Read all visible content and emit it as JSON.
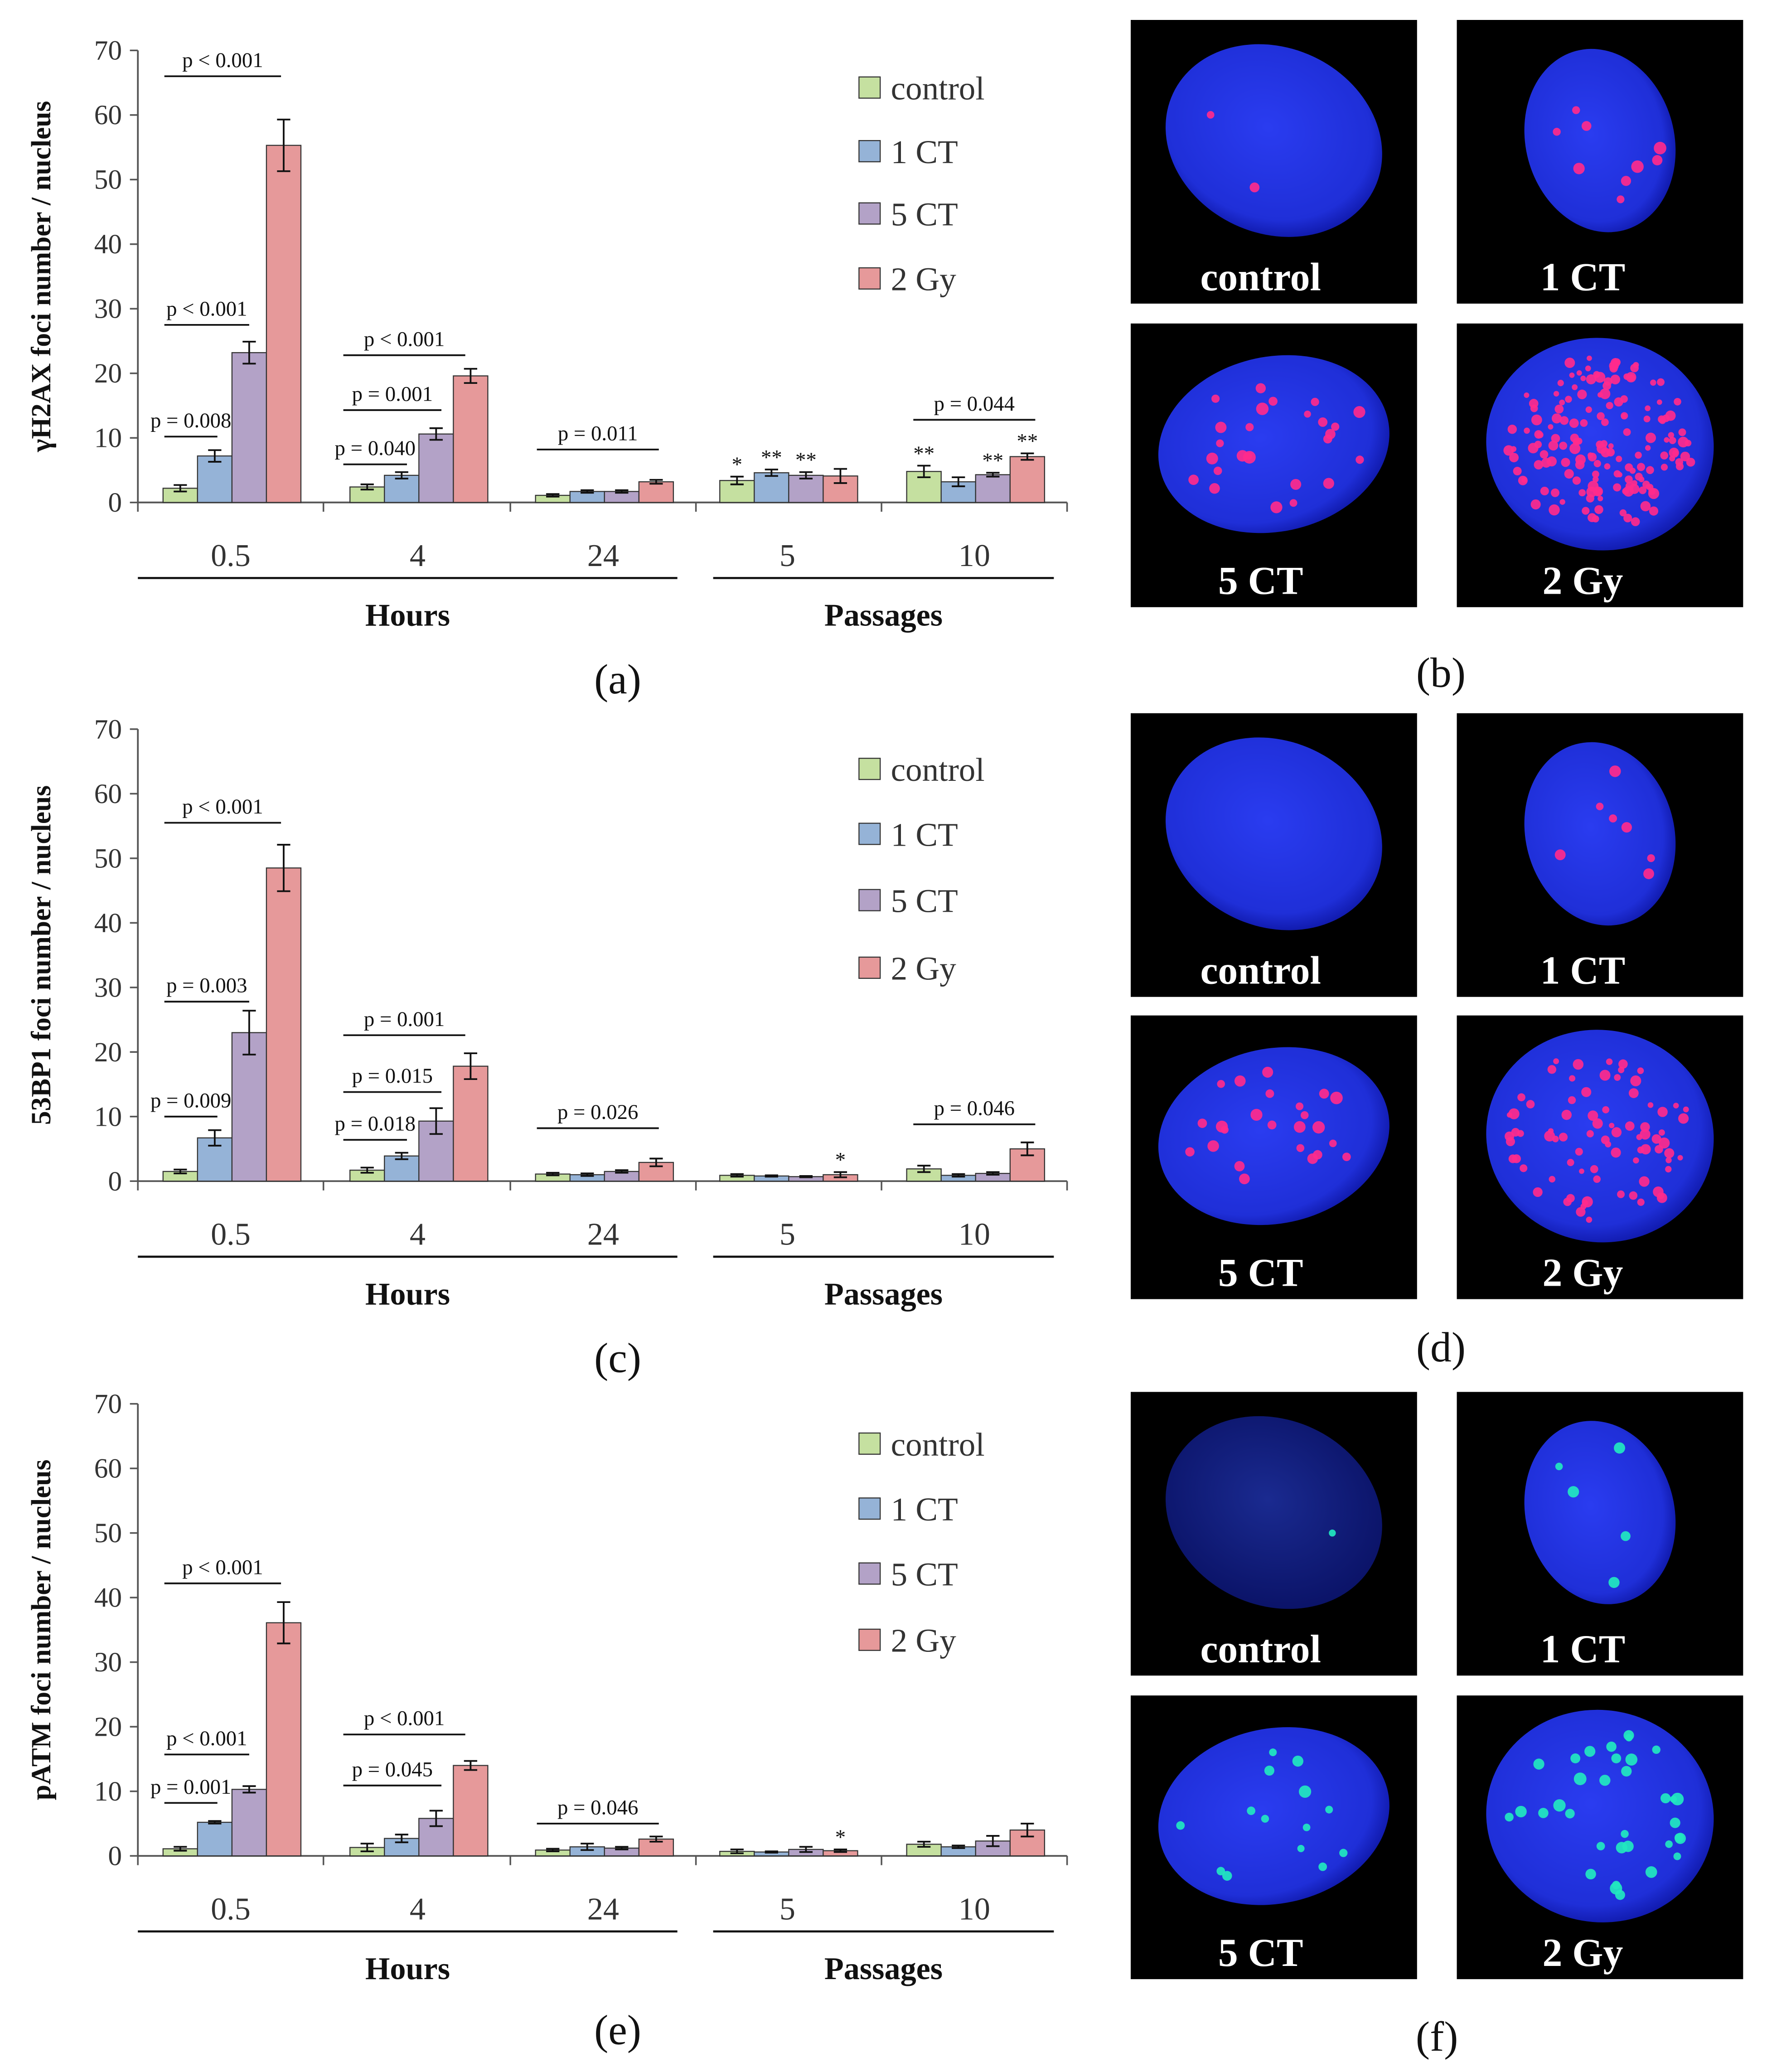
{
  "figure": {
    "colors": {
      "control": "#c5e0a0",
      "1ct": "#95b3d7",
      "5ct": "#b3a2c7",
      "2gy": "#e6999a",
      "blue_cell": "#1f2fd8",
      "red_focus": "#ff2a8c",
      "green_focus": "#22e8c0",
      "axis": "#444444"
    },
    "panels": [
      {
        "label": "(a)"
      },
      {
        "label": "(b)"
      },
      {
        "label": "(c)"
      },
      {
        "label": "(d)"
      },
      {
        "label": "(e)"
      },
      {
        "label": "(f)"
      }
    ]
  },
  "micrographs": [
    {
      "panel": "(b)",
      "focus": "red",
      "cells": [
        {
          "label": "control",
          "foci": 2
        },
        {
          "label": "1 CT",
          "foci": 9
        },
        {
          "label": "5 CT",
          "foci": 26
        },
        {
          "label": "2 Gy",
          "foci": 160
        }
      ]
    },
    {
      "panel": "(d)",
      "focus": "red",
      "cells": [
        {
          "label": "control",
          "foci": 0
        },
        {
          "label": "1 CT",
          "foci": 7
        },
        {
          "label": "5 CT",
          "foci": 24
        },
        {
          "label": "2 Gy",
          "foci": 80
        }
      ]
    },
    {
      "panel": "(f)",
      "focus": "green",
      "cells": [
        {
          "label": "control",
          "foci": 1
        },
        {
          "label": "1 CT",
          "foci": 5
        },
        {
          "label": "5 CT",
          "foci": 14
        },
        {
          "label": "2 Gy",
          "foci": 34
        }
      ]
    }
  ],
  "chart_data": [
    {
      "type": "bar",
      "panel": "(a)",
      "ylabel": "γH2AX foci number / nucleus",
      "ylim": [
        0,
        70
      ],
      "yticks": [
        0,
        10,
        20,
        30,
        40,
        50,
        60,
        70
      ],
      "categories": [
        "0.5",
        "4",
        "24",
        "5",
        "10"
      ],
      "groups": [
        {
          "label": "Hours",
          "from": 0,
          "to": 2
        },
        {
          "label": "Passages",
          "from": 3,
          "to": 4
        }
      ],
      "legend": [
        "control",
        "1 CT",
        "5 CT",
        "2 Gy"
      ],
      "series": [
        {
          "name": "control",
          "values": [
            2.2,
            2.4,
            1.1,
            3.4,
            4.8
          ],
          "errors": [
            0.5,
            0.4,
            0.2,
            0.6,
            0.9
          ]
        },
        {
          "name": "1 CT",
          "values": [
            7.2,
            4.2,
            1.7,
            4.6,
            3.2
          ],
          "errors": [
            0.9,
            0.5,
            0.2,
            0.5,
            0.7
          ]
        },
        {
          "name": "5 CT",
          "values": [
            23.2,
            10.6,
            1.7,
            4.2,
            4.3
          ],
          "errors": [
            1.7,
            0.9,
            0.2,
            0.5,
            0.3
          ]
        },
        {
          "name": "2 Gy",
          "values": [
            55.3,
            19.6,
            3.2,
            4.1,
            7.1
          ],
          "errors": [
            4.0,
            1.1,
            0.3,
            1.1,
            0.5
          ]
        }
      ],
      "brackets": [
        {
          "text": "p < 0.001",
          "cat": 0,
          "level": 66
        },
        {
          "text": "p < 0.001",
          "cat": 0,
          "level": 27.5
        },
        {
          "text": "p = 0.008",
          "cat": 0,
          "level": 10.2
        },
        {
          "text": "p < 0.001",
          "cat": 1,
          "level": 22.8
        },
        {
          "text": "p = 0.001",
          "cat": 1,
          "level": 14.3
        },
        {
          "text": "p = 0.040",
          "cat": 1,
          "level": 5.9
        },
        {
          "text": "p = 0.011",
          "cat": 2,
          "level": 8.2
        },
        {
          "text": "p = 0.044",
          "cat": 4,
          "level": 12.8
        }
      ],
      "stars": [
        {
          "text": "*",
          "cat": 3,
          "series": 0
        },
        {
          "text": "**",
          "cat": 3,
          "series": 1
        },
        {
          "text": "**",
          "cat": 3,
          "series": 2
        },
        {
          "text": "**",
          "cat": 4,
          "series": 0
        },
        {
          "text": "**",
          "cat": 4,
          "series": 2
        },
        {
          "text": "**",
          "cat": 4,
          "series": 3
        }
      ]
    },
    {
      "type": "bar",
      "panel": "(c)",
      "ylabel": "53BP1 foci number / nucleus",
      "ylim": [
        0,
        70
      ],
      "yticks": [
        0,
        10,
        20,
        30,
        40,
        50,
        60,
        70
      ],
      "categories": [
        "0.5",
        "4",
        "24",
        "5",
        "10"
      ],
      "groups": [
        {
          "label": "Hours",
          "from": 0,
          "to": 2
        },
        {
          "label": "Passages",
          "from": 3,
          "to": 4
        }
      ],
      "legend": [
        "control",
        "1 CT",
        "5 CT",
        "2 Gy"
      ],
      "series": [
        {
          "name": "control",
          "values": [
            1.5,
            1.7,
            1.1,
            0.9,
            1.9
          ],
          "errors": [
            0.3,
            0.4,
            0.2,
            0.2,
            0.5
          ]
        },
        {
          "name": "1 CT",
          "values": [
            6.7,
            3.9,
            1.0,
            0.8,
            0.9
          ],
          "errors": [
            1.2,
            0.5,
            0.2,
            0.1,
            0.2
          ]
        },
        {
          "name": "5 CT",
          "values": [
            23.0,
            9.3,
            1.5,
            0.7,
            1.2
          ],
          "errors": [
            3.4,
            2.0,
            0.2,
            0.1,
            0.2
          ]
        },
        {
          "name": "2 Gy",
          "values": [
            48.5,
            17.8,
            2.9,
            1.0,
            5.0
          ],
          "errors": [
            3.6,
            2.0,
            0.6,
            0.4,
            1.0
          ]
        }
      ],
      "brackets": [
        {
          "text": "p < 0.001",
          "cat": 0,
          "level": 55.5
        },
        {
          "text": "p = 0.003",
          "cat": 0,
          "level": 27.8
        },
        {
          "text": "p = 0.009",
          "cat": 0,
          "level": 10.0
        },
        {
          "text": "p = 0.001",
          "cat": 1,
          "level": 22.6
        },
        {
          "text": "p = 0.015",
          "cat": 1,
          "level": 13.8
        },
        {
          "text": "p = 0.018",
          "cat": 1,
          "level": 6.4
        },
        {
          "text": "p = 0.026",
          "cat": 2,
          "level": 8.2
        },
        {
          "text": "p = 0.046",
          "cat": 4,
          "level": 8.8
        }
      ],
      "stars": [
        {
          "text": "*",
          "cat": 3,
          "series": 3
        }
      ]
    },
    {
      "type": "bar",
      "panel": "(e)",
      "ylabel": "pATM foci number / nucleus",
      "ylim": [
        0,
        70
      ],
      "yticks": [
        0,
        10,
        20,
        30,
        40,
        50,
        60,
        70
      ],
      "categories": [
        "0.5",
        "4",
        "24",
        "5",
        "10"
      ],
      "groups": [
        {
          "label": "Hours",
          "from": 0,
          "to": 2
        },
        {
          "label": "Passages",
          "from": 3,
          "to": 4
        }
      ],
      "legend": [
        "control",
        "1 CT",
        "5 CT",
        "2 Gy"
      ],
      "series": [
        {
          "name": "control",
          "values": [
            1.1,
            1.3,
            0.9,
            0.7,
            1.8
          ],
          "errors": [
            0.3,
            0.6,
            0.2,
            0.3,
            0.4
          ]
        },
        {
          "name": "1 CT",
          "values": [
            5.2,
            2.7,
            1.4,
            0.6,
            1.4
          ],
          "errors": [
            0.2,
            0.6,
            0.5,
            0.1,
            0.2
          ]
        },
        {
          "name": "5 CT",
          "values": [
            10.3,
            5.8,
            1.2,
            1.0,
            2.3
          ],
          "errors": [
            0.5,
            1.2,
            0.2,
            0.4,
            0.8
          ]
        },
        {
          "name": "2 Gy",
          "values": [
            36.1,
            14.0,
            2.6,
            0.8,
            4.0
          ],
          "errors": [
            3.2,
            0.7,
            0.4,
            0.2,
            1.0
          ]
        }
      ],
      "brackets": [
        {
          "text": "p < 0.001",
          "cat": 0,
          "level": 42.2
        },
        {
          "text": "p < 0.001",
          "cat": 0,
          "level": 15.7
        },
        {
          "text": "p = 0.001",
          "cat": 0,
          "level": 8.2
        },
        {
          "text": "p < 0.001",
          "cat": 1,
          "level": 18.8
        },
        {
          "text": "p = 0.045",
          "cat": 1,
          "level": 10.9
        },
        {
          "text": "p = 0.046",
          "cat": 2,
          "level": 5.0
        }
      ],
      "stars": [
        {
          "text": "*",
          "cat": 3,
          "series": 3
        }
      ]
    }
  ]
}
